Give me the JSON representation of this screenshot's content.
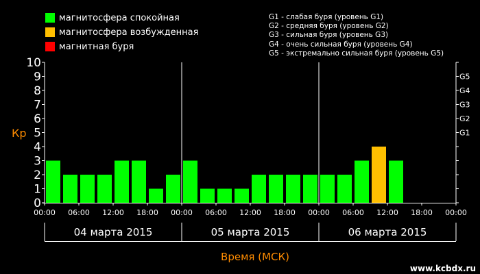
{
  "legend": {
    "items": [
      {
        "label": "магнитосфера спокойная",
        "color": "#00ff00"
      },
      {
        "label": "магнитосфера возбужденная",
        "color": "#ffbf00"
      },
      {
        "label": "магнитная буря",
        "color": "#ff0000"
      }
    ],
    "g_levels": [
      "G1 - слабая буря (уровень G1)",
      "G2 - средняя буря (уровень G2)",
      "G3 - сильная буря (уровень G3)",
      "G4 - очень сильная буря (уровень G4)",
      "G5 - экстремально сильная буря (уровень G5)"
    ]
  },
  "watermark": "www.kcbdx.ru",
  "colors": {
    "quiet": "#00ff00",
    "active": "#ffbf00",
    "storm": "#ff0000",
    "axis_title": "#ff8c00",
    "background": "#000000"
  },
  "chart_data": {
    "type": "bar",
    "ylabel": "Кр",
    "xlabel": "Время (МСК)",
    "ylim": [
      0,
      10
    ],
    "yticks": [
      "0",
      "1",
      "2",
      "3",
      "4",
      "5",
      "6",
      "7",
      "8",
      "9",
      "10"
    ],
    "g_scale": [
      {
        "label": "G1",
        "kp": 5
      },
      {
        "label": "G2",
        "kp": 6
      },
      {
        "label": "G3",
        "kp": 7
      },
      {
        "label": "G4",
        "kp": 8
      },
      {
        "label": "G5",
        "kp": 9
      }
    ],
    "time_ticks": [
      "00:00",
      "06:00",
      "12:00",
      "18:00",
      "00:00",
      "06:00",
      "12:00",
      "18:00",
      "00:00",
      "06:00",
      "12:00",
      "18:00",
      "00:00"
    ],
    "days": [
      "04 марта 2015",
      "05 марта 2015",
      "06 марта 2015"
    ],
    "interval_hours": 3,
    "values": [
      3,
      2,
      2,
      2,
      3,
      3,
      1,
      2,
      3,
      1,
      1,
      1,
      2,
      2,
      2,
      2,
      2,
      2,
      3,
      4,
      3,
      null,
      null,
      null
    ]
  }
}
